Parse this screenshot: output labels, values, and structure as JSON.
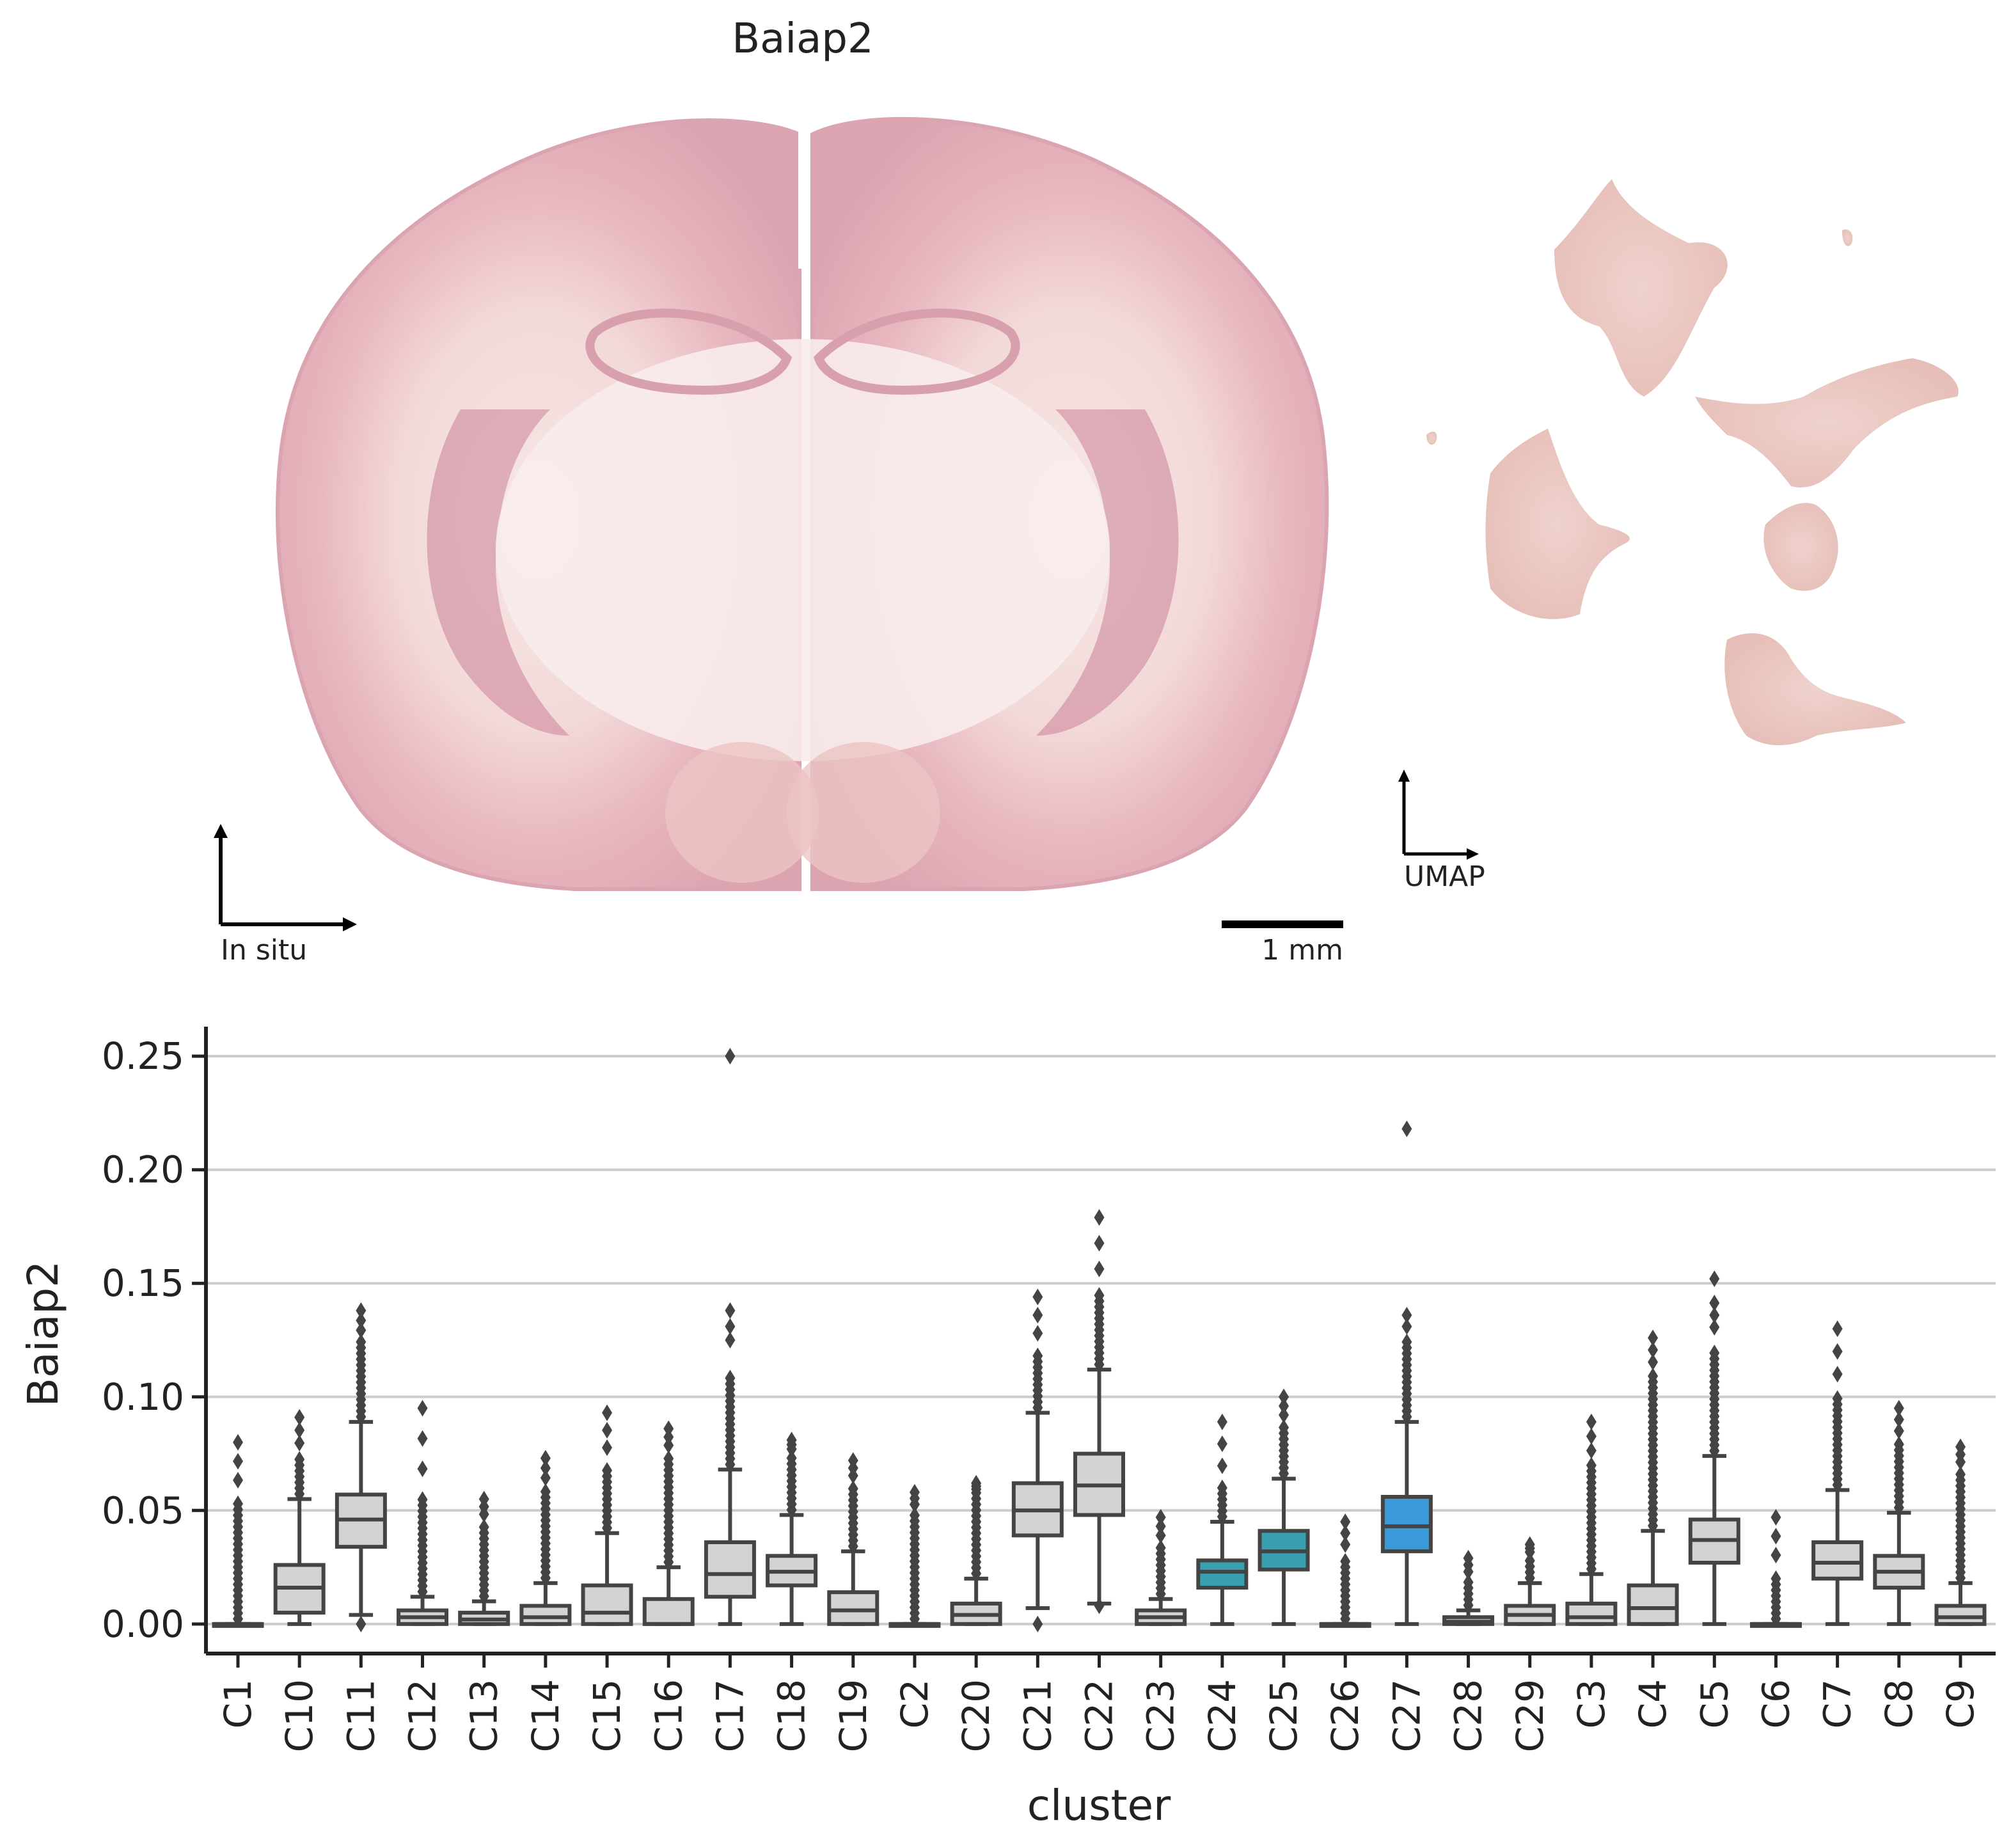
{
  "figure": {
    "title": "Baiap2",
    "insitu_axis_label": "In situ",
    "umap_axis_label": "UMAP",
    "scale_bar_label": "1 mm",
    "colors": {
      "tissue_light": "#f3d6d6",
      "tissue_mid": "#e0a9b3",
      "tissue_dark": "#b9668a",
      "umap_fill": "#ecc8c2",
      "box_default": "#d3d3d3",
      "box_stroke": "#444444",
      "box_highlight_teal": "#3aa0b0",
      "box_highlight_blue": "#3a9ad9",
      "grid": "#cccccc"
    }
  },
  "chart_data": {
    "type": "box",
    "xlabel": "cluster",
    "ylabel": "Baiap2",
    "ylim": [
      -0.013,
      0.263
    ],
    "yticks": [
      0.0,
      0.05,
      0.1,
      0.15,
      0.2,
      0.25
    ],
    "ytick_labels": [
      "0.00",
      "0.05",
      "0.10",
      "0.15",
      "0.20",
      "0.25"
    ],
    "grid": "horizontal",
    "categories": [
      "C1",
      "C10",
      "C11",
      "C12",
      "C13",
      "C14",
      "C15",
      "C16",
      "C17",
      "C18",
      "C19",
      "C2",
      "C20",
      "C21",
      "C22",
      "C23",
      "C24",
      "C25",
      "C26",
      "C27",
      "C28",
      "C29",
      "C3",
      "C4",
      "C5",
      "C6",
      "C7",
      "C8",
      "C9"
    ],
    "boxes": [
      {
        "q1": 0.0,
        "median": 0.0,
        "q3": 0.0,
        "whislo": 0.0,
        "whishi": 0.0,
        "flier_max": 0.08,
        "flier_dense_top": 0.055,
        "color": "default"
      },
      {
        "q1": 0.005,
        "median": 0.016,
        "q3": 0.026,
        "whislo": 0.0,
        "whishi": 0.055,
        "flier_max": 0.091,
        "flier_dense_top": 0.074,
        "color": "default"
      },
      {
        "q1": 0.034,
        "median": 0.046,
        "q3": 0.057,
        "whislo": 0.004,
        "whishi": 0.089,
        "flier_max": 0.138,
        "flier_dense_top": 0.125,
        "flier_min": 0.0,
        "color": "default"
      },
      {
        "q1": 0.0,
        "median": 0.003,
        "q3": 0.006,
        "whislo": 0.0,
        "whishi": 0.012,
        "flier_max": 0.095,
        "flier_dense_top": 0.055,
        "color": "default"
      },
      {
        "q1": 0.0,
        "median": 0.002,
        "q3": 0.005,
        "whislo": 0.0,
        "whishi": 0.01,
        "flier_max": 0.055,
        "flier_dense_top": 0.045,
        "color": "default"
      },
      {
        "q1": 0.0,
        "median": 0.003,
        "q3": 0.008,
        "whislo": 0.0,
        "whishi": 0.018,
        "flier_max": 0.073,
        "flier_dense_top": 0.06,
        "color": "default"
      },
      {
        "q1": 0.0,
        "median": 0.005,
        "q3": 0.017,
        "whislo": 0.0,
        "whishi": 0.04,
        "flier_max": 0.093,
        "flier_dense_top": 0.07,
        "color": "default"
      },
      {
        "q1": 0.0,
        "median": 0.0,
        "q3": 0.011,
        "whislo": 0.0,
        "whishi": 0.025,
        "flier_max": 0.086,
        "flier_dense_top": 0.075,
        "color": "default"
      },
      {
        "q1": 0.012,
        "median": 0.022,
        "q3": 0.036,
        "whislo": 0.0,
        "whishi": 0.068,
        "flier_max": 0.25,
        "flier_dense_top": 0.11,
        "extra_fliers": [
          0.125,
          0.131,
          0.138
        ],
        "color": "default"
      },
      {
        "q1": 0.017,
        "median": 0.023,
        "q3": 0.03,
        "whislo": 0.0,
        "whishi": 0.048,
        "flier_max": 0.081,
        "flier_dense_top": 0.075,
        "color": "default"
      },
      {
        "q1": 0.0,
        "median": 0.006,
        "q3": 0.014,
        "whislo": 0.0,
        "whishi": 0.032,
        "flier_max": 0.072,
        "flier_dense_top": 0.062,
        "color": "default"
      },
      {
        "q1": 0.0,
        "median": 0.0,
        "q3": 0.0,
        "whislo": 0.0,
        "whishi": 0.0,
        "flier_max": 0.058,
        "flier_dense_top": 0.05,
        "color": "default"
      },
      {
        "q1": 0.0,
        "median": 0.004,
        "q3": 0.009,
        "whislo": 0.0,
        "whishi": 0.02,
        "flier_max": 0.062,
        "flier_dense_top": 0.058,
        "color": "default"
      },
      {
        "q1": 0.039,
        "median": 0.05,
        "q3": 0.062,
        "whislo": 0.007,
        "whishi": 0.093,
        "flier_max": 0.144,
        "flier_dense_top": 0.12,
        "flier_min": 0.0,
        "color": "default"
      },
      {
        "q1": 0.048,
        "median": 0.061,
        "q3": 0.075,
        "whislo": 0.009,
        "whishi": 0.112,
        "flier_max": 0.179,
        "flier_dense_top": 0.145,
        "flier_min": 0.008,
        "color": "default"
      },
      {
        "q1": 0.0,
        "median": 0.003,
        "q3": 0.006,
        "whislo": 0.0,
        "whishi": 0.011,
        "flier_max": 0.047,
        "flier_dense_top": 0.035,
        "color": "default"
      },
      {
        "q1": 0.016,
        "median": 0.023,
        "q3": 0.028,
        "whislo": 0.0,
        "whishi": 0.045,
        "flier_max": 0.089,
        "flier_dense_top": 0.06,
        "color": "teal"
      },
      {
        "q1": 0.024,
        "median": 0.032,
        "q3": 0.041,
        "whislo": 0.0,
        "whishi": 0.064,
        "flier_max": 0.1,
        "flier_dense_top": 0.088,
        "color": "teal"
      },
      {
        "q1": 0.0,
        "median": 0.0,
        "q3": 0.0,
        "whislo": 0.0,
        "whishi": 0.0,
        "flier_max": 0.045,
        "flier_dense_top": 0.03,
        "color": "default"
      },
      {
        "q1": 0.032,
        "median": 0.043,
        "q3": 0.056,
        "whislo": 0.0,
        "whishi": 0.089,
        "flier_max": 0.218,
        "flier_dense_top": 0.125,
        "extra_fliers": [
          0.131,
          0.136
        ],
        "color": "blue"
      },
      {
        "q1": 0.0,
        "median": 0.001,
        "q3": 0.003,
        "whislo": 0.0,
        "whishi": 0.006,
        "flier_max": 0.029,
        "flier_dense_top": 0.02,
        "color": "default"
      },
      {
        "q1": 0.0,
        "median": 0.004,
        "q3": 0.008,
        "whislo": 0.0,
        "whishi": 0.018,
        "flier_max": 0.035,
        "flier_dense_top": 0.03,
        "color": "default"
      },
      {
        "q1": 0.0,
        "median": 0.003,
        "q3": 0.009,
        "whislo": 0.0,
        "whishi": 0.022,
        "flier_max": 0.089,
        "flier_dense_top": 0.07,
        "color": "default"
      },
      {
        "q1": 0.0,
        "median": 0.007,
        "q3": 0.017,
        "whislo": 0.0,
        "whishi": 0.041,
        "flier_max": 0.126,
        "flier_dense_top": 0.11,
        "color": "default"
      },
      {
        "q1": 0.027,
        "median": 0.037,
        "q3": 0.046,
        "whislo": 0.0,
        "whishi": 0.074,
        "flier_max": 0.152,
        "flier_dense_top": 0.12,
        "extra_fliers": [
          0.136
        ],
        "color": "default"
      },
      {
        "q1": 0.0,
        "median": 0.0,
        "q3": 0.0,
        "whislo": 0.0,
        "whishi": 0.0,
        "flier_max": 0.047,
        "flier_dense_top": 0.022,
        "color": "default"
      },
      {
        "q1": 0.02,
        "median": 0.027,
        "q3": 0.036,
        "whislo": 0.0,
        "whishi": 0.059,
        "flier_max": 0.13,
        "flier_dense_top": 0.1,
        "color": "default"
      },
      {
        "q1": 0.016,
        "median": 0.023,
        "q3": 0.03,
        "whislo": 0.0,
        "whishi": 0.049,
        "flier_max": 0.095,
        "flier_dense_top": 0.08,
        "color": "default"
      },
      {
        "q1": 0.0,
        "median": 0.003,
        "q3": 0.008,
        "whislo": 0.0,
        "whishi": 0.018,
        "flier_max": 0.078,
        "flier_dense_top": 0.068,
        "color": "default"
      }
    ]
  }
}
